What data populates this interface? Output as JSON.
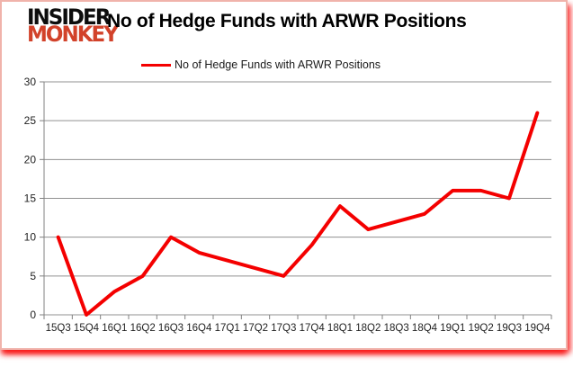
{
  "logo": {
    "line1": "INSIDER",
    "line2": "MONKEY"
  },
  "header": {
    "title": "No of Hedge Funds with ARWR Positions"
  },
  "legend": {
    "label": "No of Hedge Funds with ARWR Positions"
  },
  "chart_data": {
    "type": "line",
    "title": "No of Hedge Funds with ARWR Positions",
    "categories": [
      "15Q3",
      "15Q4",
      "16Q1",
      "16Q2",
      "16Q3",
      "16Q4",
      "17Q1",
      "17Q2",
      "17Q3",
      "17Q4",
      "18Q1",
      "18Q2",
      "18Q3",
      "18Q4",
      "19Q1",
      "19Q2",
      "19Q3",
      "19Q4"
    ],
    "series": [
      {
        "name": "No of Hedge Funds with ARWR Positions",
        "values": [
          10,
          0,
          3,
          5,
          10,
          8,
          7,
          6,
          5,
          9,
          14,
          11,
          12,
          13,
          16,
          16,
          15,
          26
        ]
      }
    ],
    "xlabel": "",
    "ylabel": "",
    "ylim": [
      0,
      30
    ],
    "yticks": [
      0,
      5,
      10,
      15,
      20,
      25,
      30
    ],
    "grid": "horizontal",
    "legend_position": "top"
  },
  "colors": {
    "line": "#f40000",
    "grid": "#909090",
    "axis": "#808080",
    "tick_label": "#1f1f1f",
    "logo_black": "#0d0d0d",
    "logo_red": "#d2422a",
    "border_pink": "#f0b3ab",
    "shadow_red": "#f81010"
  }
}
